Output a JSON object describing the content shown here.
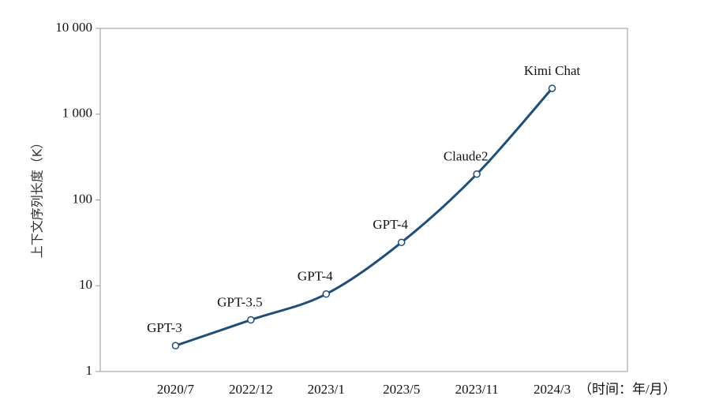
{
  "chart_data": {
    "type": "line",
    "y_label": "上下文序列长度（K）",
    "x_label": "（时间：年/月）",
    "categories": [
      "2020/7",
      "2022/12",
      "2023/1",
      "2023/5",
      "2023/11",
      "2024/3"
    ],
    "values": [
      2,
      4,
      8,
      32,
      200,
      2000
    ],
    "point_labels": [
      "GPT-3",
      "GPT-3.5",
      "GPT-4",
      "GPT-4",
      "Claude2",
      "Kimi Chat"
    ],
    "color": "#1f4e79",
    "log_y": true,
    "ylim": [
      1,
      10000
    ],
    "yticks": [
      1,
      10,
      100,
      {
        "value": 1000,
        "label": "1 000"
      },
      {
        "value": 10000,
        "label": "10 000"
      }
    ]
  }
}
